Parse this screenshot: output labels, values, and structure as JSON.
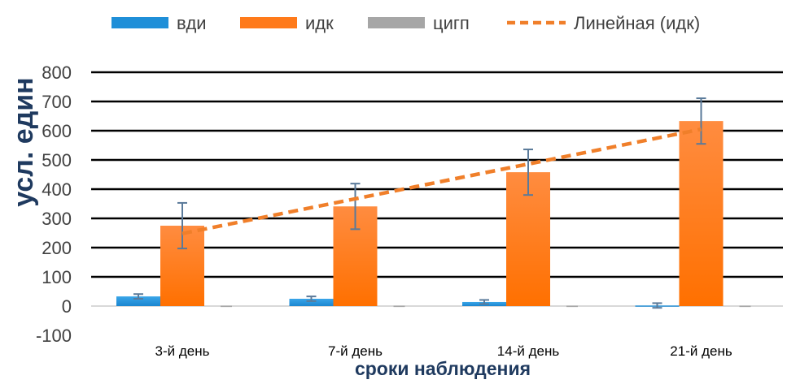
{
  "chart_data": {
    "type": "bar",
    "categories": [
      "3-й день",
      "7-й день",
      "14-й день",
      "21-й день"
    ],
    "series": [
      {
        "name": "вди",
        "values": [
          33,
          25,
          14,
          2
        ],
        "errors": [
          8,
          8,
          7,
          8
        ],
        "color": "#1f8fd8"
      },
      {
        "name": "идк",
        "values": [
          275,
          341,
          458,
          633
        ],
        "errors": [
          78,
          78,
          78,
          78
        ],
        "color": "#ff7a1a"
      },
      {
        "name": "цигп",
        "values": [
          1,
          1,
          1,
          1
        ],
        "errors": [
          0,
          0,
          0,
          0
        ],
        "color": "#a6a6a6"
      }
    ],
    "trendline": {
      "name": "Линейная (идк)",
      "type": "linear",
      "of": "идк",
      "start": 248,
      "end": 605,
      "color": "#f07f2a"
    },
    "xlabel": "сроки наблюдения",
    "ylabel": "усл. един",
    "ylim": [
      -100,
      800
    ],
    "yticks": [
      -100,
      0,
      100,
      200,
      300,
      400,
      500,
      600,
      700,
      800
    ],
    "grid": true,
    "legend": "top"
  }
}
